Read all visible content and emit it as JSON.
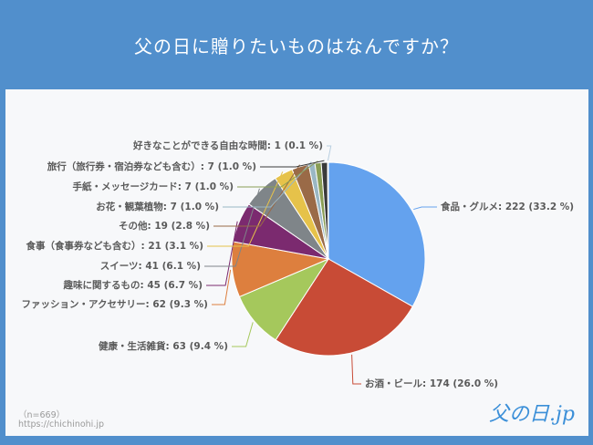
{
  "header": {
    "title": "父の日に贈りたいものはなんですか？"
  },
  "footer": {
    "sample": "（n=669）",
    "url": "https://chichinohi.jp",
    "logo": "父の日.jp"
  },
  "chart_data": {
    "type": "pie",
    "title": "父の日に贈りたいものはなんですか？",
    "total": 669,
    "start": "top",
    "direction": "clockwise",
    "slices": [
      {
        "name": "食品・グルメ",
        "value": 222,
        "percent": "33.2 %",
        "color": "#64a2ee"
      },
      {
        "name": "お酒・ビール",
        "value": 174,
        "percent": "26.0 %",
        "color": "#c84b36"
      },
      {
        "name": "健康・生活雑貨",
        "value": 63,
        "percent": "9.4 %",
        "color": "#a5c85c"
      },
      {
        "name": "ファッション・アクセサリー",
        "value": 62,
        "percent": "9.3 %",
        "color": "#dd7f3e"
      },
      {
        "name": "趣味に関するもの",
        "value": 45,
        "percent": "6.7 %",
        "color": "#7b2a6f"
      },
      {
        "name": "スイーツ",
        "value": 41,
        "percent": "6.1 %",
        "color": "#7f8589"
      },
      {
        "name": "食事（食事券なども含む）",
        "value": 21,
        "percent": "3.1 %",
        "color": "#e6c24a"
      },
      {
        "name": "その他",
        "value": 19,
        "percent": "2.8 %",
        "color": "#9a6a47"
      },
      {
        "name": "お花・観葉植物",
        "value": 7,
        "percent": "1.0 %",
        "color": "#9ab7c4"
      },
      {
        "name": "手紙・メッセージカード",
        "value": 7,
        "percent": "1.0 %",
        "color": "#8a9e55"
      },
      {
        "name": "旅行（旅行券・宿泊券なども含む）",
        "value": 7,
        "percent": "1.0 %",
        "color": "#3a3a3a"
      },
      {
        "name": "好きなことができる自由な時間",
        "value": 1,
        "percent": "0.1 %",
        "color": "#b9cfe0"
      }
    ]
  }
}
